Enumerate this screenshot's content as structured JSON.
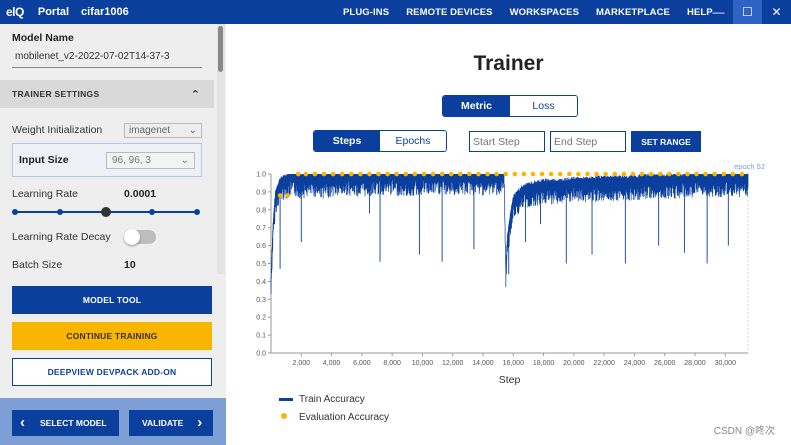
{
  "topbar": {
    "logo_prefix": "el",
    "logo_suffix": "Q",
    "app_title": "Portal",
    "project": "cifar1006",
    "nav": [
      "PLUG-INS",
      "REMOTE DEVICES",
      "WORKSPACES",
      "MARKETPLACE",
      "HELP"
    ],
    "minimize_glyph": "—",
    "maximize_glyph": "☐",
    "close_glyph": "✕",
    "colors": {
      "bar": "#0b3f9e",
      "active_control": "#2f63c3"
    }
  },
  "sidebar": {
    "model_name_label": "Model Name",
    "model_name_value": "mobilenet_v2-2022-07-02T14-37-3",
    "section_title": "TRAINER SETTINGS",
    "section_chevron": "⌃",
    "weight_init_label": "Weight Initialization",
    "weight_init_value": "imagenet",
    "input_size_label": "Input Size",
    "input_size_value": "96, 96, 3",
    "select_chevron": "⌄",
    "learning_rate_label": "Learning Rate",
    "learning_rate_value": "0.0001",
    "learning_rate_slider": {
      "positions": 5,
      "selected_index": 2
    },
    "lr_decay_label": "Learning Rate Decay",
    "lr_decay_enabled": false,
    "batch_size_label": "Batch Size",
    "batch_size_value": "10",
    "model_tool_button": "MODEL TOOL",
    "continue_training_button": "CONTINUE TRAINING",
    "deepview_button": "DEEPVIEW DEVPACK ADD-ON",
    "select_model_button": "SELECT MODEL",
    "validate_button": "VALIDATE",
    "left_chevron": "‹",
    "right_chevron": "›",
    "colors": {
      "primary": "#0b3f9e",
      "accent": "#f9b500",
      "bottom_bar": "#7d9fd6"
    }
  },
  "main": {
    "title": "Trainer",
    "metric_tabs": [
      {
        "label": "Metric",
        "active": true
      },
      {
        "label": "Loss",
        "active": false
      }
    ],
    "axis_tabs": [
      {
        "label": "Steps",
        "active": true
      },
      {
        "label": "Epochs",
        "active": false
      }
    ],
    "start_step_placeholder": "Start Step",
    "end_step_placeholder": "End Step",
    "set_range_button": "SET RANGE",
    "watermark": "CSDN @咚次"
  },
  "chart_data": {
    "type": "line",
    "xlabel": "Step",
    "ylabel": "",
    "xlim": [
      0,
      31500
    ],
    "ylim": [
      0,
      1.0
    ],
    "x_ticks": [
      2000,
      4000,
      6000,
      8000,
      10000,
      12000,
      14000,
      16000,
      18000,
      20000,
      22000,
      24000,
      26000,
      28000,
      30000
    ],
    "x_tick_labels": [
      "2,000",
      "4,000",
      "6,000",
      "8,000",
      "10,000",
      "12,000",
      "14,000",
      "16,000",
      "18,000",
      "20,000",
      "22,000",
      "24,000",
      "26,000",
      "28,000",
      "30,000"
    ],
    "y_ticks": [
      0,
      0.1,
      0.2,
      0.3,
      0.4,
      0.5,
      0.6,
      0.7,
      0.8,
      0.9,
      1.0
    ],
    "y_tick_labels": [
      "0.0",
      "0.1",
      "0.2",
      "0.3",
      "0.4",
      "0.5",
      "0.6",
      "0.7",
      "0.8",
      "0.9",
      "1.0"
    ],
    "annotation": "epoch 52",
    "legend_position": "bottom-left",
    "series": [
      {
        "name": "Train Accuracy",
        "color": "#0b3f9e",
        "style": "line",
        "x": [
          0,
          60,
          120,
          200,
          300,
          450,
          600,
          800,
          1000,
          1300,
          1600,
          2000,
          2500,
          3000,
          3500,
          4000,
          4500,
          5000,
          6000,
          7000,
          7300,
          8000,
          9000,
          10000,
          11000,
          11500,
          12000,
          13000,
          14000,
          15000,
          15400,
          15500,
          15600,
          15800,
          16000,
          16500,
          17000,
          17500,
          18000,
          19000,
          20000,
          21000,
          22000,
          23000,
          24000,
          25000,
          26000,
          27000,
          28000,
          29000,
          30000,
          31000,
          31500
        ],
        "y": [
          0.4,
          0.55,
          0.68,
          0.78,
          0.88,
          0.92,
          0.95,
          0.96,
          0.97,
          0.98,
          0.98,
          0.97,
          0.98,
          0.98,
          0.97,
          0.98,
          0.98,
          0.99,
          0.98,
          0.99,
          0.99,
          0.99,
          0.98,
          0.99,
          0.99,
          0.99,
          0.99,
          0.99,
          0.99,
          0.99,
          0.99,
          0.45,
          0.62,
          0.75,
          0.85,
          0.9,
          0.92,
          0.93,
          0.94,
          0.94,
          0.95,
          0.95,
          0.96,
          0.96,
          0.96,
          0.97,
          0.97,
          0.97,
          0.98,
          0.98,
          0.98,
          0.98,
          0.98
        ],
        "dips": [
          [
            600,
            0.47
          ],
          [
            2000,
            0.62
          ],
          [
            6500,
            0.78
          ],
          [
            7200,
            0.51
          ],
          [
            9800,
            0.55
          ],
          [
            11300,
            0.51
          ],
          [
            13400,
            0.58
          ],
          [
            15700,
            0.44
          ],
          [
            16800,
            0.62
          ],
          [
            17800,
            0.72
          ],
          [
            19500,
            0.5
          ],
          [
            21200,
            0.55
          ],
          [
            23400,
            0.5
          ],
          [
            25600,
            0.6
          ],
          [
            27300,
            0.56
          ],
          [
            28800,
            0.5
          ],
          [
            30200,
            0.6
          ]
        ]
      },
      {
        "name": "Evaluation Accuracy",
        "color": "#f9b500",
        "style": "points",
        "x": [
          600,
          1100,
          1800,
          2300,
          2900,
          3500,
          4100,
          4700,
          5300,
          5900,
          6500,
          7100,
          7700,
          8300,
          8900,
          9500,
          10100,
          10700,
          11300,
          11900,
          12500,
          13100,
          13700,
          14300,
          14900,
          15500,
          16100,
          16700,
          17300,
          17900,
          18500,
          19100,
          19700,
          20300,
          20900,
          21500,
          22100,
          22700,
          23300,
          23900,
          24500,
          25100,
          25700,
          26300,
          26900,
          27500,
          28100,
          28700,
          29300,
          29900,
          30500,
          31100
        ],
        "y": [
          0.88,
          0.88,
          1.0,
          1.0,
          1.0,
          1.0,
          1.0,
          1.0,
          1.0,
          1.0,
          1.0,
          1.0,
          1.0,
          1.0,
          1.0,
          1.0,
          1.0,
          1.0,
          1.0,
          1.0,
          1.0,
          1.0,
          1.0,
          1.0,
          1.0,
          1.0,
          1.0,
          1.0,
          1.0,
          1.0,
          1.0,
          1.0,
          1.0,
          1.0,
          1.0,
          1.0,
          1.0,
          1.0,
          1.0,
          1.0,
          1.0,
          1.0,
          1.0,
          1.0,
          1.0,
          1.0,
          1.0,
          1.0,
          1.0,
          1.0,
          1.0,
          1.0
        ]
      }
    ]
  }
}
